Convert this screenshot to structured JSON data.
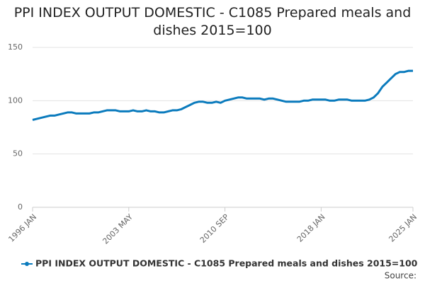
{
  "chart_data": {
    "type": "line",
    "title": "PPI INDEX OUTPUT DOMESTIC - C1085 Prepared meals and dishes 2015=100",
    "source": "Source:",
    "categories": [
      "1996 JAN",
      null,
      null,
      null,
      null,
      null,
      null,
      null,
      null,
      null,
      null,
      null,
      null,
      null,
      null,
      null,
      null,
      null,
      null,
      null,
      null,
      null,
      "2003 MAY",
      null,
      null,
      null,
      null,
      null,
      null,
      null,
      null,
      null,
      null,
      null,
      null,
      null,
      null,
      null,
      null,
      null,
      null,
      null,
      null,
      null,
      "2010 SEP",
      null,
      null,
      null,
      null,
      null,
      null,
      null,
      null,
      null,
      null,
      null,
      null,
      null,
      null,
      null,
      null,
      null,
      null,
      null,
      null,
      null,
      "2018 JAN",
      null,
      null,
      null,
      null,
      null,
      null,
      null,
      null,
      null,
      null,
      null,
      null,
      null,
      null,
      null,
      null,
      null,
      null,
      null,
      null,
      "2025 JAN"
    ],
    "series": [
      {
        "name": "PPI INDEX OUTPUT DOMESTIC - C1085 Prepared meals and dishes 2015=100",
        "color": "#0b7bbd",
        "values": [
          82,
          83,
          84,
          85,
          86,
          86,
          87,
          88,
          89,
          89,
          88,
          88,
          88,
          88,
          89,
          89,
          90,
          91,
          91,
          91,
          90,
          90,
          90,
          91,
          90,
          90,
          91,
          90,
          90,
          89,
          89,
          90,
          91,
          91,
          92,
          94,
          96,
          98,
          99,
          99,
          98,
          98,
          99,
          98,
          100,
          101,
          102,
          103,
          103,
          102,
          102,
          102,
          102,
          101,
          102,
          102,
          101,
          100,
          99,
          99,
          99,
          99,
          100,
          100,
          101,
          101,
          101,
          101,
          100,
          100,
          101,
          101,
          101,
          100,
          100,
          100,
          100,
          101,
          103,
          107,
          113,
          117,
          121,
          125,
          127,
          127,
          128,
          128
        ]
      }
    ],
    "ylim": [
      0,
      150
    ],
    "yticks": [
      0,
      50,
      100,
      150
    ],
    "grid": true
  }
}
